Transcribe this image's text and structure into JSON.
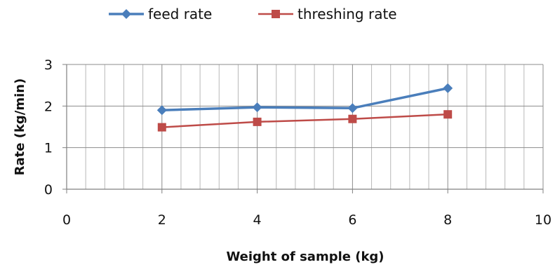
{
  "chart_data": {
    "type": "line",
    "xlabel": "Weight of sample (kg)",
    "ylabel": "Rate (kg/min)",
    "xlim": [
      0,
      10
    ],
    "ylim": [
      0,
      3
    ],
    "xticks": [
      0,
      2,
      4,
      6,
      8,
      10
    ],
    "yticks": [
      0,
      1,
      2,
      3
    ],
    "x_minor_step": 0.4,
    "grid": true,
    "legend_position": "top",
    "series": [
      {
        "name": "feed rate",
        "color": "#4a7ebb",
        "marker": "diamond",
        "x": [
          2,
          4,
          6,
          8
        ],
        "y": [
          1.9,
          1.97,
          1.95,
          2.43
        ]
      },
      {
        "name": "threshing rate",
        "color": "#be4b48",
        "marker": "square",
        "x": [
          2,
          4,
          6,
          8
        ],
        "y": [
          1.49,
          1.62,
          1.69,
          1.8
        ]
      }
    ]
  }
}
